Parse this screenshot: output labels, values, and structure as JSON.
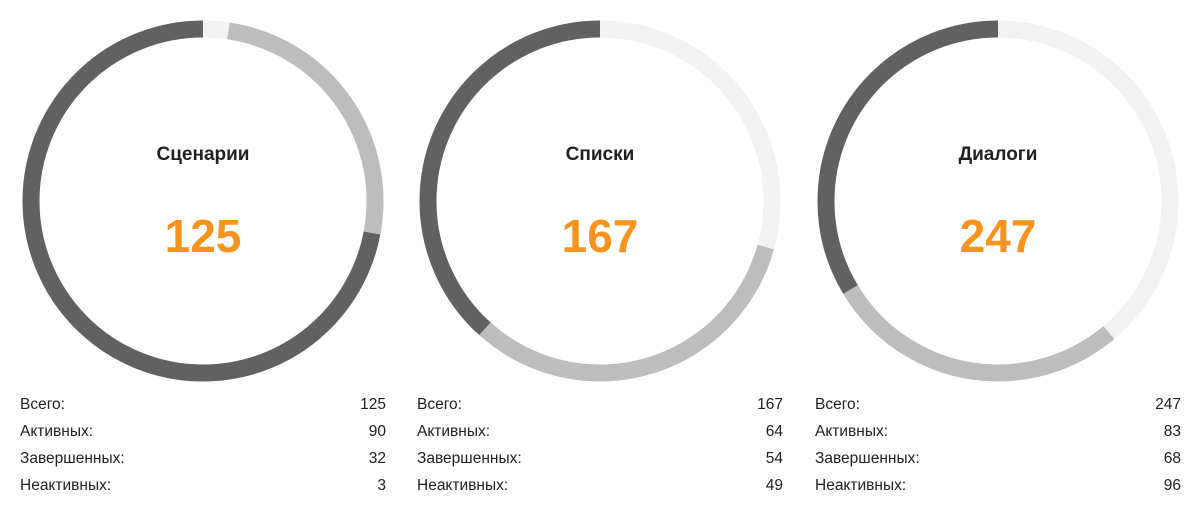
{
  "colors": {
    "accent": "#f7941d",
    "active": "#616161",
    "completed": "#bdbdbd",
    "inactive": "#f2f2f2",
    "text": "#212121"
  },
  "chart_data": [
    {
      "type": "pie",
      "title": "Сценарии",
      "total": "125",
      "categories": [
        "Активных",
        "Завершенных",
        "Неактивных"
      ],
      "values": [
        90,
        32,
        3
      ],
      "stats": [
        {
          "label": "Всего:",
          "value": "125"
        },
        {
          "label": "Активных:",
          "value": "90"
        },
        {
          "label": "Завершенных:",
          "value": "32"
        },
        {
          "label": "Неактивных:",
          "value": "3"
        }
      ]
    },
    {
      "type": "pie",
      "title": "Списки",
      "total": "167",
      "categories": [
        "Активных",
        "Завершенных",
        "Неактивных"
      ],
      "values": [
        64,
        54,
        49
      ],
      "stats": [
        {
          "label": "Всего:",
          "value": "167"
        },
        {
          "label": "Активных:",
          "value": "64"
        },
        {
          "label": "Завершенных:",
          "value": "54"
        },
        {
          "label": "Неактивных:",
          "value": "49"
        }
      ]
    },
    {
      "type": "pie",
      "title": "Диалоги",
      "total": "247",
      "categories": [
        "Активных",
        "Завершенных",
        "Неактивных"
      ],
      "values": [
        83,
        68,
        96
      ],
      "stats": [
        {
          "label": "Всего:",
          "value": "247"
        },
        {
          "label": "Активных:",
          "value": "83"
        },
        {
          "label": "Завершенных:",
          "value": "68"
        },
        {
          "label": "Неактивных:",
          "value": "96"
        }
      ]
    }
  ]
}
